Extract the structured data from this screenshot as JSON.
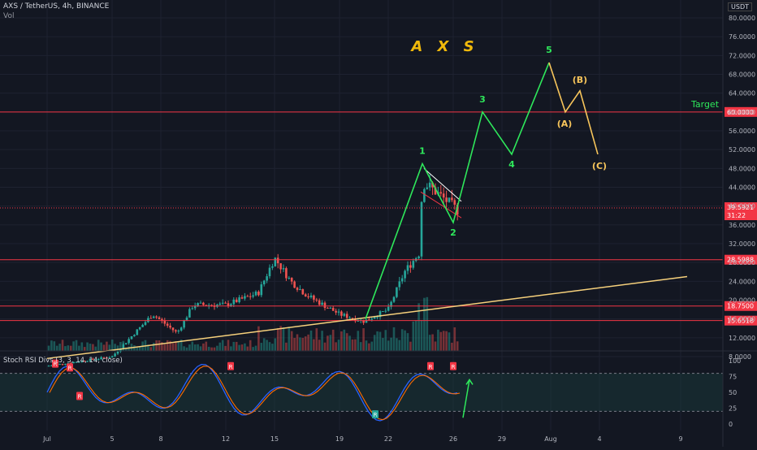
{
  "header": {
    "symbol": "AXS / TetherUS, 4h, BINANCE",
    "volume_label": "Vol",
    "currency": "USDT"
  },
  "indicator": {
    "title": "Stoch RSI Divs (3, 3, 14, 14, close)",
    "levels": [
      100,
      75,
      50,
      25,
      0
    ],
    "bands": [
      80,
      20
    ]
  },
  "colors": {
    "bg": "#131722",
    "grid": "#1e2230",
    "up": "#26a69a",
    "down": "#ef5350",
    "wave": "#2ee85b",
    "corrective": "#f7c55b",
    "trendline": "#f7d17c",
    "hline": "#f23645",
    "text": "#b2b5be"
  },
  "chart_data": {
    "type": "candlestick",
    "title": "A X S",
    "y_axis_labels": [
      "80.0000",
      "76.0000",
      "72.0000",
      "68.0000",
      "64.0000",
      "60.0000",
      "56.0000",
      "52.0000",
      "48.0000",
      "44.0000",
      "40.0000",
      "36.0000",
      "32.0000",
      "28.0000",
      "24.0000",
      "20.0000",
      "16.0000",
      "12.0000",
      "8.0000"
    ],
    "x_axis_labels": [
      "Jul",
      "5",
      "8",
      "12",
      "15",
      "19",
      "22",
      "26",
      "29",
      "Aug",
      "4",
      "9"
    ],
    "price_lines": [
      {
        "label": "60.0000",
        "value": 60.0
      },
      {
        "label": "28.5988",
        "value": 28.5988
      },
      {
        "label": "18.7500",
        "value": 18.75
      },
      {
        "label": "15.6518",
        "value": 15.6518
      }
    ],
    "current_price": {
      "label": "39.5921",
      "countdown": "31:22",
      "value": 39.5921
    },
    "target_label": "Target",
    "elliott_impulse": [
      {
        "label": "1",
        "date": "Jul 24",
        "value": 49
      },
      {
        "label": "2",
        "date": "Jul 26",
        "value": 36.5
      },
      {
        "label": "3",
        "date": "Jul 27",
        "value": 60
      },
      {
        "label": "4",
        "date": "Jul 30",
        "value": 51
      },
      {
        "label": "5",
        "date": "Aug 1",
        "value": 70.5
      }
    ],
    "elliott_corrective": [
      {
        "label": "(A)",
        "date": "Aug 2",
        "value": 60
      },
      {
        "label": "(B)",
        "date": "Aug 3",
        "value": 64.5
      },
      {
        "label": "(C)",
        "date": "Aug 4",
        "value": 51
      }
    ],
    "stoch_markers": [
      "R",
      "R",
      "R",
      "R",
      "R",
      "R",
      "R"
    ]
  }
}
